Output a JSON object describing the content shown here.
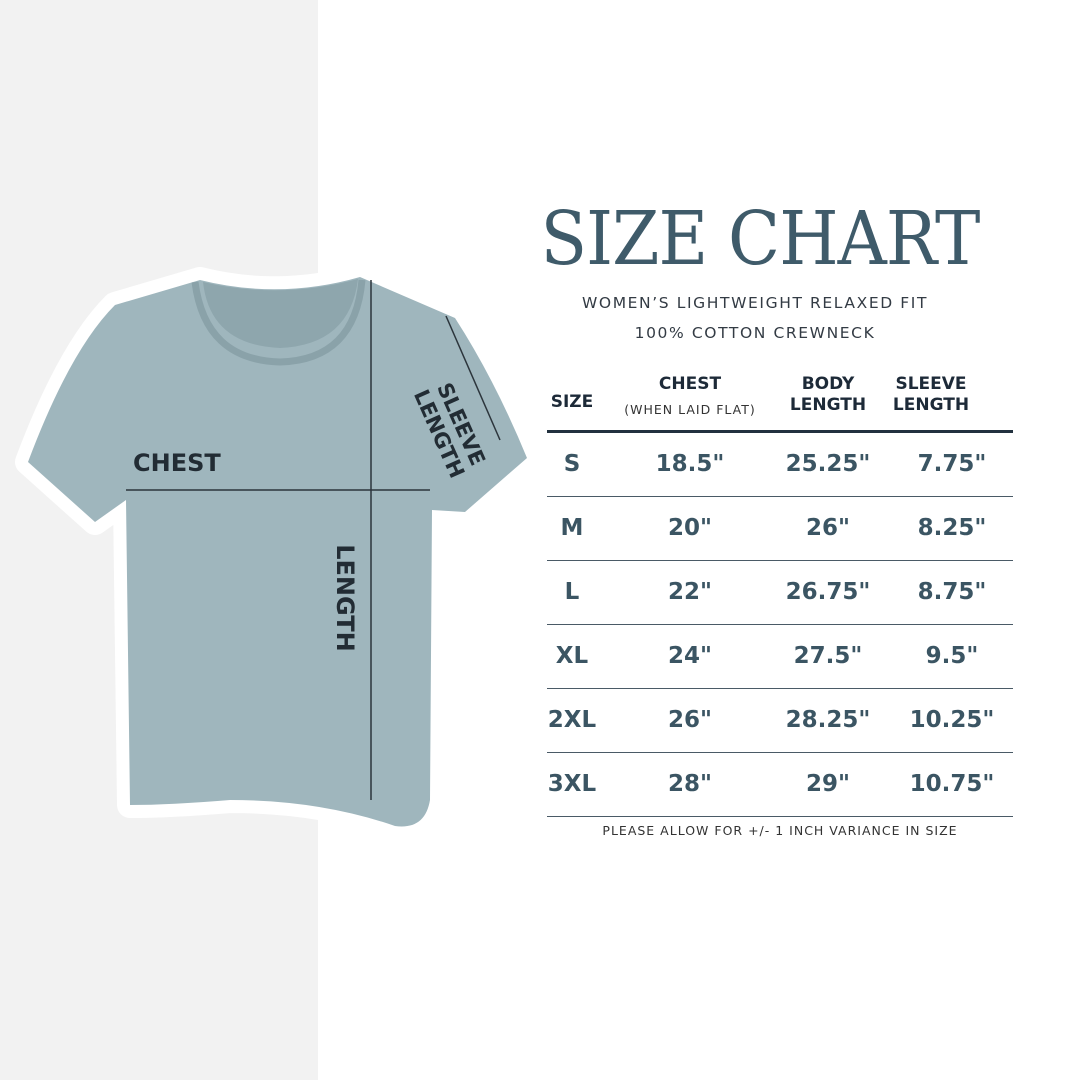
{
  "title": "SIZE CHART",
  "subtitle_line1": "WOMEN’S LIGHTWEIGHT RELAXED FIT",
  "subtitle_line2": "100% COTTON CREWNECK",
  "shirt_labels": {
    "chest": "CHEST",
    "length": "LENGTH",
    "sleeve_line1": "SLEEVE",
    "sleeve_line2": "LENGTH"
  },
  "table": {
    "headers": {
      "size": "SIZE",
      "chest": "CHEST",
      "chest_note": "(WHEN LAID FLAT)",
      "body_1": "BODY",
      "body_2": "LENGTH",
      "sleeve_1": "SLEEVE",
      "sleeve_2": "LENGTH"
    },
    "rows": [
      [
        "S",
        "18.5\"",
        "25.25\"",
        "7.75\""
      ],
      [
        "M",
        "20\"",
        "26\"",
        "8.25\""
      ],
      [
        "L",
        "22\"",
        "26.75\"",
        "8.75\""
      ],
      [
        "XL",
        "24\"",
        "27.5\"",
        "9.5\""
      ],
      [
        "2XL",
        "26\"",
        "28.25\"",
        "10.25\""
      ],
      [
        "3XL",
        "28\"",
        "29\"",
        "10.75\""
      ]
    ]
  },
  "footnote": "PLEASE ALLOW FOR +/- 1 INCH VARIANCE IN SIZE",
  "colors": {
    "title": "#3f5b6a",
    "shirt": "#9fb6bd",
    "values": "#3b5563"
  }
}
